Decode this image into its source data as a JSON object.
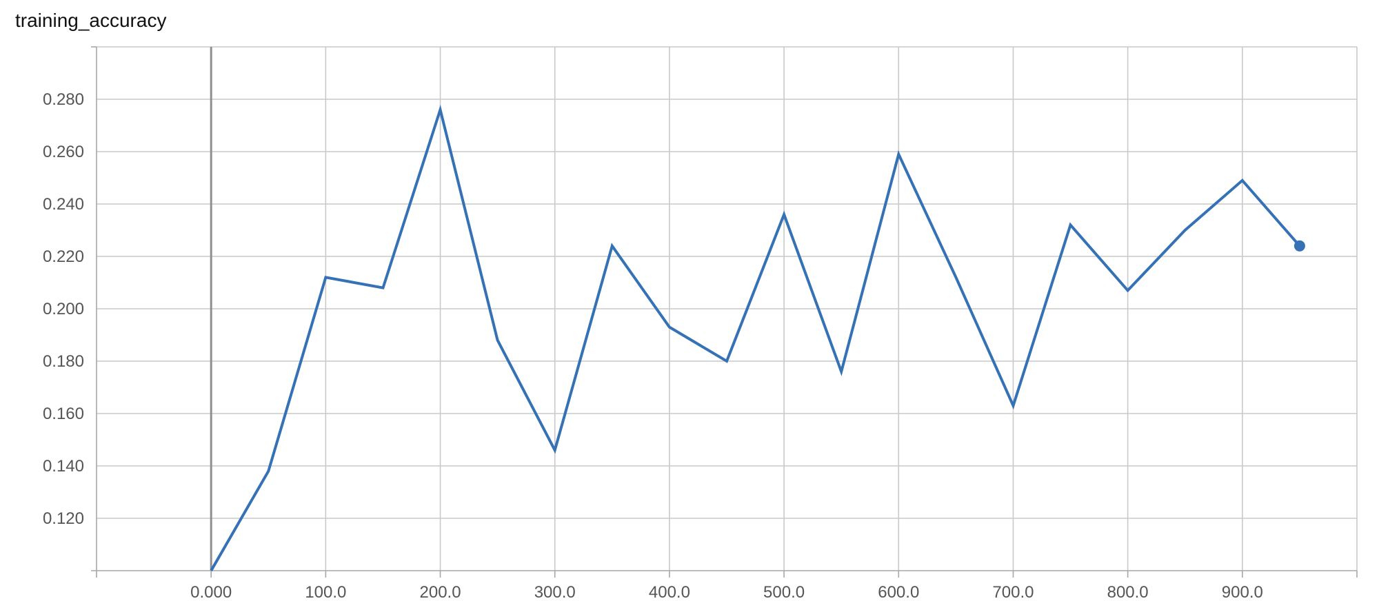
{
  "colors": {
    "series": "#3471b5",
    "grid": "#c9c9c9"
  },
  "chart_data": {
    "type": "line",
    "title": "training_accuracy",
    "xlabel": "",
    "ylabel": "",
    "xlim": [
      -100,
      1000
    ],
    "ylim": [
      0.1,
      0.3
    ],
    "xticks": [
      0,
      100,
      200,
      300,
      400,
      500,
      600,
      700,
      800,
      900
    ],
    "xtick_labels": [
      "0.000",
      "100.0",
      "200.0",
      "300.0",
      "400.0",
      "500.0",
      "600.0",
      "700.0",
      "800.0",
      "900.0"
    ],
    "yticks": [
      0.12,
      0.14,
      0.16,
      0.18,
      0.2,
      0.22,
      0.24,
      0.26,
      0.28
    ],
    "ytick_labels": [
      "0.120",
      "0.140",
      "0.160",
      "0.180",
      "0.200",
      "0.220",
      "0.240",
      "0.260",
      "0.280"
    ],
    "grid": true,
    "series": [
      {
        "x": [
          0,
          50,
          100,
          150,
          200,
          250,
          300,
          350,
          400,
          450,
          500,
          550,
          600,
          650,
          700,
          750,
          800,
          850,
          900,
          950
        ],
        "values": [
          0.1,
          0.138,
          0.212,
          0.208,
          0.276,
          0.188,
          0.146,
          0.224,
          0.193,
          0.18,
          0.236,
          0.176,
          0.259,
          0.212,
          0.163,
          0.232,
          0.207,
          0.23,
          0.249,
          0.224
        ]
      }
    ],
    "last_point_marker": true
  }
}
